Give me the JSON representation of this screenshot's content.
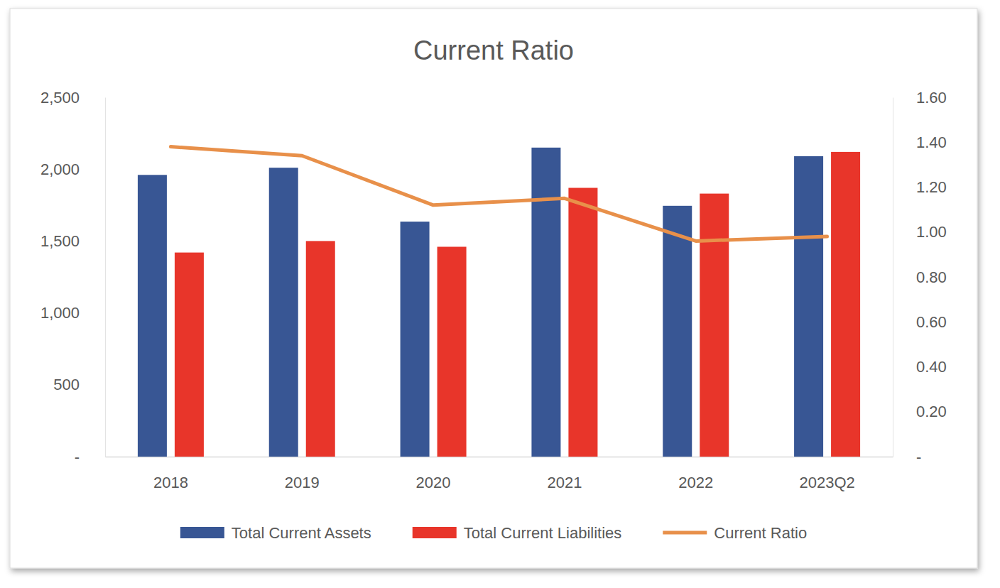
{
  "chart_data": {
    "type": "bar",
    "title": "Current Ratio",
    "categories": [
      "2018",
      "2019",
      "2020",
      "2021",
      "2022",
      "2023Q2"
    ],
    "series": [
      {
        "name": "Total Current Assets",
        "type": "bar",
        "color": "#385694",
        "values": [
          1960,
          2010,
          1635,
          2150,
          1745,
          2090
        ]
      },
      {
        "name": "Total Current Liabilities",
        "type": "bar",
        "color": "#e8352a",
        "values": [
          1420,
          1500,
          1460,
          1870,
          1830,
          2120
        ]
      },
      {
        "name": "Current Ratio",
        "type": "line",
        "axis": "y2",
        "color": "#e8904a",
        "values": [
          1.38,
          1.34,
          1.12,
          1.15,
          0.96,
          0.98
        ]
      }
    ],
    "ylim": [
      0,
      2500
    ],
    "yticks": [
      {
        "value": 0,
        "label": "-"
      },
      500,
      {
        "value": 1000,
        "label": "1,000"
      },
      {
        "value": 1500,
        "label": "1,500"
      },
      {
        "value": 2000,
        "label": "2,000"
      },
      {
        "value": 2500,
        "label": "2,500"
      }
    ],
    "y2lim": [
      0,
      1.6
    ],
    "y2ticks": [
      {
        "value": 0,
        "label": "-"
      },
      {
        "value": 0.2,
        "label": "0.20"
      },
      {
        "value": 0.4,
        "label": "0.40"
      },
      {
        "value": 0.6,
        "label": "0.60"
      },
      {
        "value": 0.8,
        "label": "0.80"
      },
      {
        "value": 1.0,
        "label": "1.00"
      },
      {
        "value": 1.2,
        "label": "1.20"
      },
      {
        "value": 1.4,
        "label": "1.40"
      },
      {
        "value": 1.6,
        "label": "1.60"
      }
    ],
    "grid": false,
    "legend": "bottom"
  }
}
